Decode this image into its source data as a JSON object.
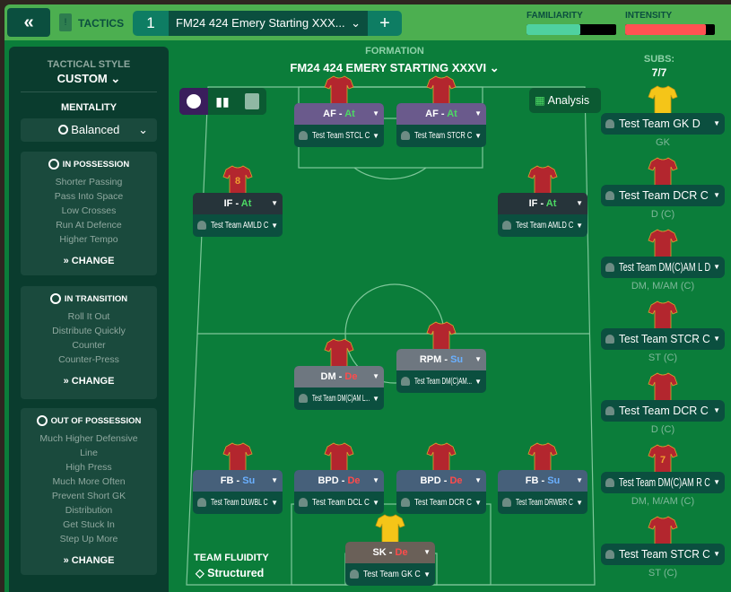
{
  "header": {
    "back_icon": "double-chevron-left",
    "tactics_label": "TACTICS",
    "tactic_number": "1",
    "tactic_name": "FM24 424 Emery Starting XXX...",
    "add_label": "+",
    "familiarity_label": "FAMILIARITY",
    "familiarity_value": 0.6,
    "intensity_label": "INTENSITY",
    "intensity_value": 0.9,
    "colors": {
      "familiarity": "#4fd1a0",
      "intensity": "#ff5252"
    }
  },
  "left": {
    "style_label": "TACTICAL STYLE",
    "style_value": "CUSTOM",
    "mentality_label": "MENTALITY",
    "mentality_value": "Balanced",
    "in_possession": {
      "title": "IN POSSESSION",
      "items": [
        "Shorter Passing",
        "Pass Into Space",
        "Low Crosses",
        "Run At Defence",
        "Higher Tempo"
      ],
      "change": "CHANGE"
    },
    "in_transition": {
      "title": "IN TRANSITION",
      "items": [
        "Roll It Out",
        "Distribute Quickly",
        "Counter",
        "Counter-Press"
      ],
      "change": "CHANGE"
    },
    "out_of_possession": {
      "title": "OUT OF POSSESSION",
      "items": [
        "Much Higher Defensive",
        "Line",
        "High Press",
        "Much More Often",
        "Prevent Short GK",
        "Distribution",
        "Get Stuck In",
        "Step Up More"
      ],
      "change": "CHANGE"
    }
  },
  "formation": {
    "label": "FORMATION",
    "name": "FM24 424 EMERY STARTING XXXVI",
    "analysis": "Analysis",
    "fluidity_label": "TEAM FLUIDITY",
    "fluidity_value": "Structured"
  },
  "players": [
    {
      "role": "AF",
      "duty": "At",
      "name": "Test Team STCL C",
      "color": "#6a5a8c"
    },
    {
      "role": "AF",
      "duty": "At",
      "name": "Test Team STCR  C",
      "color": "#6a5a8c"
    },
    {
      "role": "IF",
      "duty": "At",
      "name": "Test Team AMLD C",
      "color": "#26343a",
      "number": "8"
    },
    {
      "role": "IF",
      "duty": "At",
      "name": "Test Team AMLD C",
      "color": "#26343a"
    },
    {
      "role": "DM",
      "duty": "De",
      "name": "Test Team DM(C)AM L...",
      "color": "#6e7780"
    },
    {
      "role": "RPM",
      "duty": "Su",
      "name": "Test Team DM(C)AM...",
      "color": "#6e7780"
    },
    {
      "role": "FB",
      "duty": "Su",
      "name": "Test Team DLWBL C",
      "color": "#46607a"
    },
    {
      "role": "BPD",
      "duty": "De",
      "name": "Test Team DCL C",
      "color": "#46607a"
    },
    {
      "role": "BPD",
      "duty": "De",
      "name": "Test Team DCR C",
      "color": "#46607a"
    },
    {
      "role": "FB",
      "duty": "Su",
      "name": "Test Team DRWBR C",
      "color": "#46607a"
    },
    {
      "role": "SK",
      "duty": "De",
      "name": "Test Team GK C",
      "color": "#6a6058",
      "gk": true
    }
  ],
  "subs": {
    "label": "SUBS:",
    "count": "7/7",
    "items": [
      {
        "name": "Test Team GK D",
        "pos": "GK",
        "gk": true
      },
      {
        "name": "Test Team DCR C",
        "pos": "D (C)"
      },
      {
        "name": "Test Team DM(C)AM L  D",
        "pos": "DM, M/AM (C)"
      },
      {
        "name": "Test Team STCR  C",
        "pos": "ST (C)"
      },
      {
        "name": "Test Team DCR C",
        "pos": "D (C)"
      },
      {
        "name": "Test Team DM(C)AM R C",
        "pos": "DM, M/AM (C)",
        "number": "7"
      },
      {
        "name": "Test Team STCR  C",
        "pos": "ST (C)"
      }
    ]
  }
}
